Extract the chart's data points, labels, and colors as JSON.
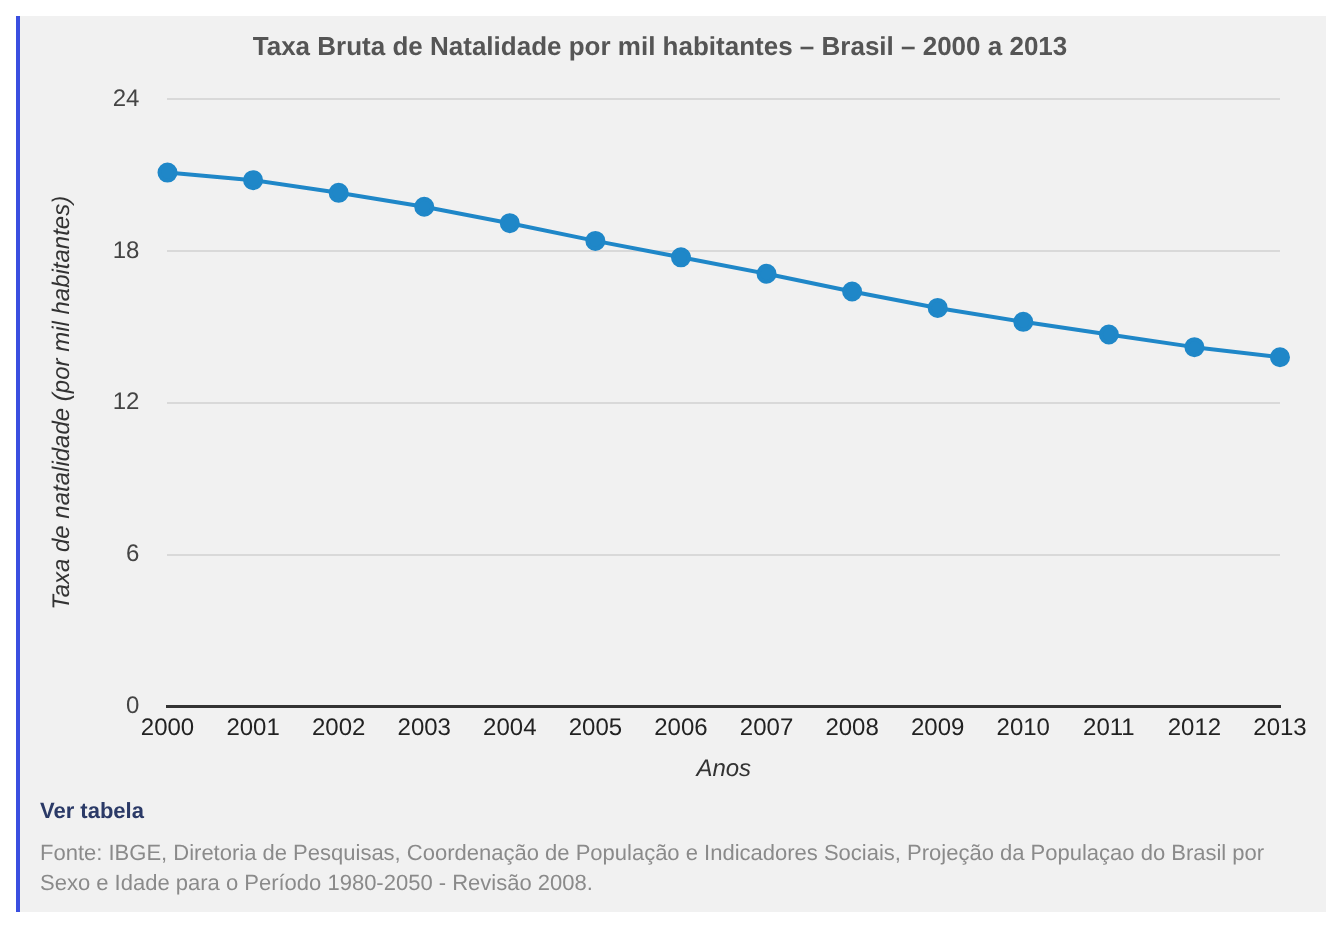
{
  "chart_data": {
    "type": "line",
    "title": "Taxa Bruta de Natalidade por mil habitantes – Brasil – 2000 a 2013",
    "xlabel": "Anos",
    "ylabel": "Taxa de natalidade (por mil habitantes)",
    "categories": [
      "2000",
      "2001",
      "2002",
      "2003",
      "2004",
      "2005",
      "2006",
      "2007",
      "2008",
      "2009",
      "2010",
      "2011",
      "2012",
      "2013"
    ],
    "series": [
      {
        "color": "#1f87c8",
        "values": [
          21.1,
          20.8,
          20.3,
          19.75,
          19.1,
          18.4,
          17.75,
          17.1,
          16.4,
          15.75,
          15.2,
          14.7,
          14.2,
          13.8
        ]
      }
    ],
    "ylim": [
      0,
      24
    ],
    "yticks": [
      0,
      6,
      12,
      18,
      24
    ],
    "grid": "y",
    "legend": false,
    "marker": "circle",
    "line_style": "solid",
    "annotations": [
      "Ver tabela",
      "Fonte: IBGE, Diretoria de Pesquisas, Coordenação de População e Indicadores Sociais, Projeção da Populaçao do Brasil por Sexo e Idade para o Período 1980-2050 - Revisão 2008."
    ]
  }
}
